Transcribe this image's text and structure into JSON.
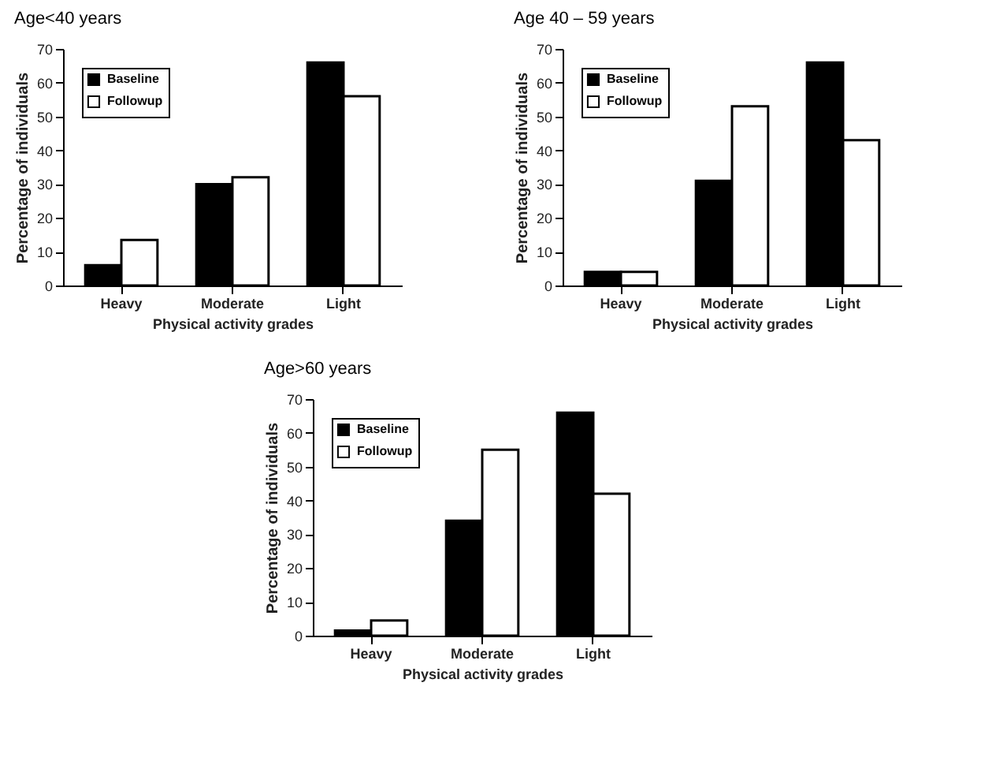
{
  "chart_data": [
    {
      "type": "bar",
      "title": "Age<40 years",
      "xlabel": "Physical activity grades",
      "ylabel": "Percentage of individuals",
      "categories": [
        "Heavy",
        "Moderate",
        "Light"
      ],
      "series": [
        {
          "name": "Baseline",
          "color": "#000000",
          "values": [
            6,
            30,
            66
          ]
        },
        {
          "name": "Followup",
          "color": "#ffffff",
          "values": [
            13.5,
            32,
            56
          ]
        }
      ],
      "ylim": [
        0,
        70
      ],
      "yticks": [
        0,
        10,
        20,
        30,
        40,
        50,
        60,
        70
      ],
      "legend": "top left"
    },
    {
      "type": "bar",
      "title": "Age 40 – 59  years",
      "xlabel": "Physical activity grades",
      "ylabel": "Percentage of individuals",
      "categories": [
        "Heavy",
        "Moderate",
        "Light"
      ],
      "series": [
        {
          "name": "Baseline",
          "color": "#000000",
          "values": [
            4,
            31,
            66
          ]
        },
        {
          "name": "Followup",
          "color": "#ffffff",
          "values": [
            4,
            53,
            43
          ]
        }
      ],
      "ylim": [
        0,
        70
      ],
      "yticks": [
        0,
        10,
        20,
        30,
        40,
        50,
        60,
        70
      ],
      "legend": "top left"
    },
    {
      "type": "bar",
      "title": "Age>60 years",
      "xlabel": "Physical activity grades",
      "ylabel": "Percentage of individuals",
      "categories": [
        "Heavy",
        "Moderate",
        "Light"
      ],
      "series": [
        {
          "name": "Baseline",
          "color": "#000000",
          "values": [
            1.5,
            34,
            66
          ]
        },
        {
          "name": "Followup",
          "color": "#ffffff",
          "values": [
            4.5,
            55,
            42
          ]
        }
      ],
      "ylim": [
        0,
        70
      ],
      "yticks": [
        0,
        10,
        20,
        30,
        40,
        50,
        60,
        70
      ],
      "legend": "top left"
    }
  ]
}
